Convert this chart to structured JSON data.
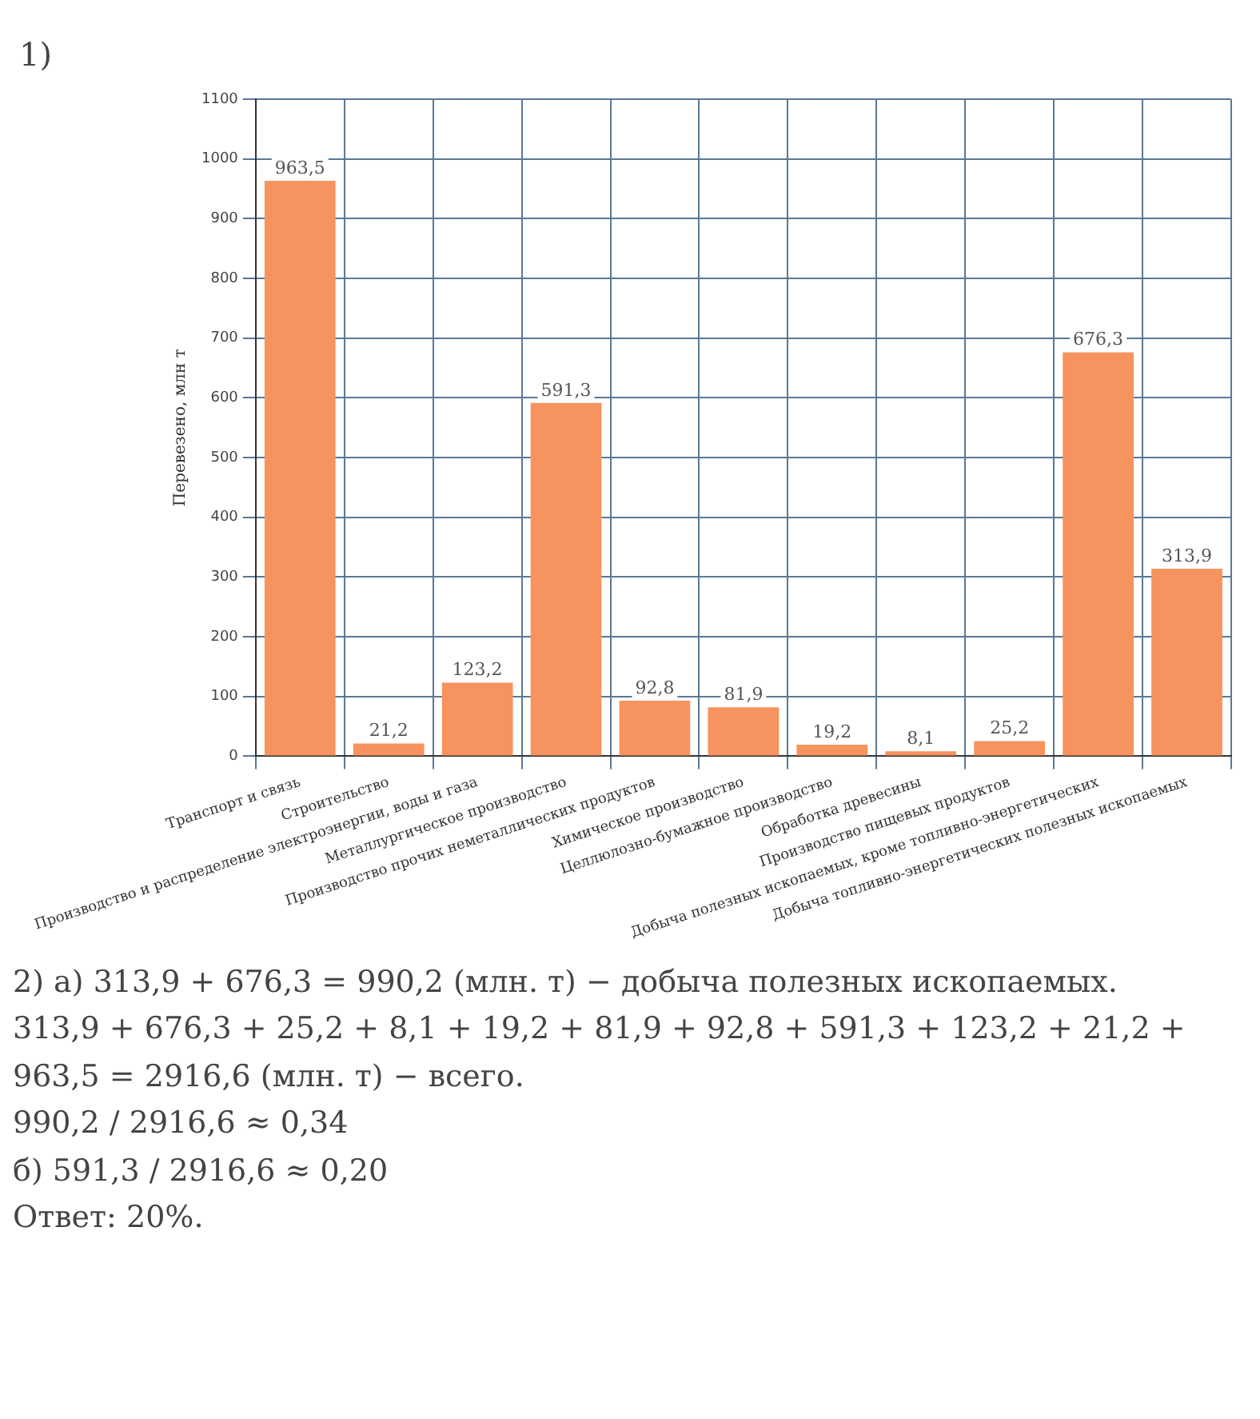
{
  "chart_data": {
    "type": "bar",
    "ylabel": "Перевезено, млн т",
    "categories": [
      "Транспорт и связь",
      "Строительство",
      "Производство и распределение электроэнергии, воды и газа",
      "Металлургическое производство",
      "Производство прочих неметаллических продуктов",
      "Химическое производство",
      "Целлюлозно-бумажное производство",
      "Обработка древесины",
      "Производство пищевых продуктов",
      "Добыча полезных ископаемых, кроме топливно-энергетических",
      "Добыча топливно-энергетических полезных ископаемых"
    ],
    "values": [
      963.5,
      21.2,
      123.2,
      591.3,
      92.8,
      81.9,
      19.2,
      8.1,
      25.2,
      676.3,
      313.9
    ],
    "value_labels": [
      "963,5",
      "21,2",
      "123,2",
      "591,3",
      "92,8",
      "81,9",
      "19,2",
      "8,1",
      "25,2",
      "676,3",
      "313,9"
    ],
    "color": "#f7935f",
    "ylim": [
      0,
      1100
    ],
    "yticks": [
      0,
      100,
      200,
      300,
      400,
      500,
      600,
      700,
      800,
      900,
      1000,
      1100
    ],
    "grid": true,
    "annotations": [
      "1)",
      "2) а) 313,9 + 676,3 = 990,2 (млн. т) − добыча полезных ископаемых.",
      "313,9 + 676,3 + 25,2 + 8,1 + 19,2 + 81,9 + 92,8 + 591,3 + 123,2 + 21,2 + 963,5 = 2916,6 (млн. т) − всего.",
      "990,2 / 2916,6 ≈ 0,34",
      "б) 591,3 / 2916,6 ≈ 0,20",
      "Ответ: 20%."
    ]
  }
}
